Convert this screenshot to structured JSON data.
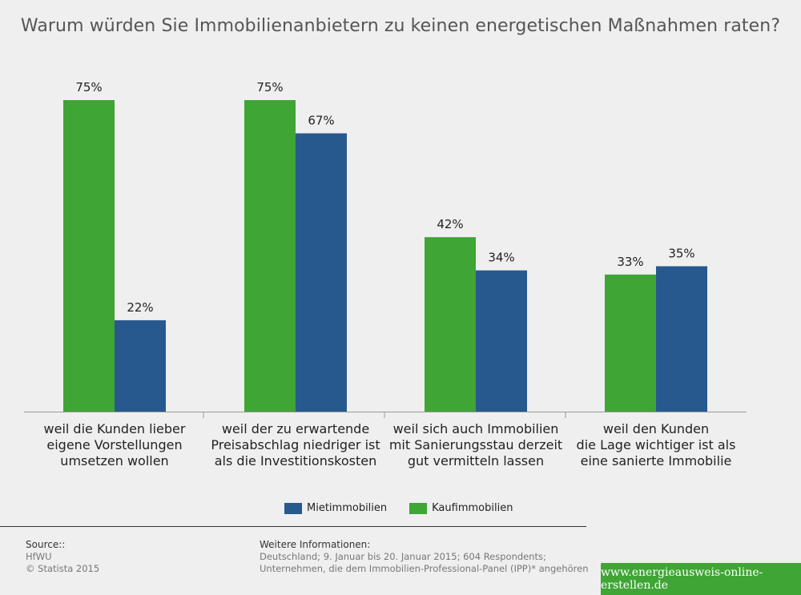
{
  "colors": {
    "miet": "#27598f",
    "kauf": "#3fa535",
    "axis": "#999999"
  },
  "chart_data": {
    "type": "bar",
    "title": "Warum würden Sie Immobilienanbietern zu keinen energetischen Maßnahmen raten?",
    "categories": [
      [
        "weil die Kunden lieber",
        "eigene Vorstellungen",
        "umsetzen wollen"
      ],
      [
        "weil der zu erwartende",
        "Preisabschlag niedriger ist",
        "als die Investitionskosten"
      ],
      [
        "weil sich auch Immobilien",
        "mit Sanierungsstau derzeit",
        "gut vermitteln lassen"
      ],
      [
        "weil den Kunden",
        "die Lage wichtiger ist als",
        "eine sanierte Immobilie"
      ]
    ],
    "series": [
      {
        "name": "Kaufimmobilien",
        "values": [
          75,
          75,
          42,
          33
        ],
        "labels": [
          "75%",
          "75%",
          "42%",
          "33%"
        ],
        "color": "#3fa535"
      },
      {
        "name": "Mietimmobilien",
        "values": [
          22,
          67,
          34,
          35
        ],
        "labels": [
          "22%",
          "67%",
          "34%",
          "35%"
        ],
        "color": "#27598f"
      }
    ],
    "ylim": [
      0,
      75
    ],
    "grid": false,
    "legend_position": "bottom-center"
  },
  "legend": [
    {
      "label": "Mietimmobilien",
      "color": "#27598f"
    },
    {
      "label": "Kaufimmobilien",
      "color": "#3fa535"
    }
  ],
  "source": {
    "heading": "Source::",
    "lines": [
      "HfWU",
      "© Statista 2015"
    ]
  },
  "info": {
    "heading": "Weitere Informationen:",
    "lines": [
      "Deutschland; 9. Januar bis 20. Januar 2015; 604 Respondents;",
      "Unternehmen, die dem Immobilien-Professional-Panel (IPP)* angehören"
    ]
  },
  "brand": "www.energieausweis-online-erstellen.de"
}
